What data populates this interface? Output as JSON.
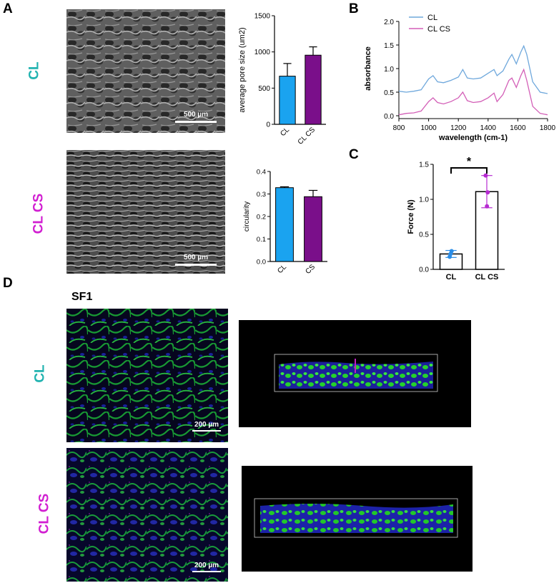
{
  "panels": {
    "A": {
      "letter": "A",
      "row_labels": [
        "CL",
        "CL CS"
      ],
      "row_colors": [
        "#21b3b0",
        "#d11fd1"
      ],
      "scale_bar": "500 µm"
    },
    "B": {
      "letter": "B"
    },
    "C": {
      "letter": "C"
    },
    "D": {
      "letter": "D",
      "subtitle": "SF1",
      "row_labels": [
        "CL",
        "CL CS"
      ],
      "row_colors": [
        "#21b3b0",
        "#d11fd1"
      ],
      "scale_bar": "200 µm"
    }
  },
  "chart_data": [
    {
      "id": "pore-size",
      "type": "bar",
      "categories": [
        "CL",
        "CL CS"
      ],
      "values": [
        665,
        955
      ],
      "errors": [
        175,
        115
      ],
      "colors": [
        "#1aa3f0",
        "#7a0f8a"
      ],
      "ylabel": "average pore size (um2)",
      "ylim": [
        0,
        1500
      ],
      "yticks": [
        0,
        500,
        1000,
        1500
      ]
    },
    {
      "id": "circularity",
      "type": "bar",
      "categories": [
        "CL",
        "CS"
      ],
      "values": [
        0.328,
        0.288
      ],
      "errors": [
        0.004,
        0.028
      ],
      "colors": [
        "#1aa3f0",
        "#7a0f8a"
      ],
      "ylabel": "circularity",
      "ylim": [
        0,
        0.4
      ],
      "yticks": [
        "0.0",
        "0.1",
        "0.2",
        "0.3",
        "0.4"
      ]
    },
    {
      "id": "ftir",
      "type": "line",
      "xlabel": "wavelength (cm-1)",
      "ylabel": "absorbance",
      "xlim": [
        800,
        1800
      ],
      "ylim": [
        0,
        2.0
      ],
      "xticks": [
        "800",
        "1000",
        "1200",
        "1400",
        "1600",
        "1800"
      ],
      "yticks": [
        "0.0",
        "0.5",
        "1.0",
        "1.5",
        "2.0"
      ],
      "legend_position": "top-left",
      "series": [
        {
          "name": "CL",
          "color": "#6fa8dc",
          "x": [
            800,
            850,
            900,
            950,
            1000,
            1030,
            1060,
            1100,
            1150,
            1200,
            1230,
            1260,
            1300,
            1350,
            1400,
            1440,
            1460,
            1500,
            1540,
            1560,
            1590,
            1620,
            1640,
            1660,
            1700,
            1750,
            1800
          ],
          "y": [
            0.52,
            0.5,
            0.52,
            0.55,
            0.78,
            0.85,
            0.72,
            0.7,
            0.75,
            0.82,
            0.98,
            0.8,
            0.78,
            0.8,
            0.9,
            0.98,
            0.85,
            0.95,
            1.2,
            1.3,
            1.1,
            1.35,
            1.48,
            1.3,
            0.72,
            0.5,
            0.47
          ]
        },
        {
          "name": "CL CS",
          "color": "#d35fb7",
          "x": [
            800,
            850,
            900,
            950,
            1000,
            1030,
            1060,
            1100,
            1150,
            1200,
            1230,
            1260,
            1300,
            1350,
            1400,
            1440,
            1460,
            1500,
            1540,
            1560,
            1590,
            1620,
            1640,
            1660,
            1700,
            1750,
            1800
          ],
          "y": [
            0.02,
            0.05,
            0.06,
            0.1,
            0.3,
            0.38,
            0.28,
            0.25,
            0.3,
            0.38,
            0.5,
            0.32,
            0.28,
            0.3,
            0.38,
            0.48,
            0.3,
            0.45,
            0.75,
            0.8,
            0.6,
            0.85,
            0.98,
            0.75,
            0.2,
            0.05,
            0.02
          ]
        }
      ]
    },
    {
      "id": "force",
      "type": "bar",
      "categories": [
        "CL",
        "CL CS"
      ],
      "values": [
        0.22,
        1.11
      ],
      "errors": [
        0.05,
        0.23
      ],
      "points": [
        [
          0.22,
          0.26,
          0.18
        ],
        [
          0.9,
          1.1,
          1.34
        ]
      ],
      "point_colors": [
        "#2b8ee8",
        "#b62ad1"
      ],
      "ylabel": "Force (N)",
      "ylim": [
        0,
        1.5
      ],
      "yticks": [
        "0.0",
        "0.5",
        "1.0",
        "1.5"
      ],
      "significance": "*"
    }
  ]
}
